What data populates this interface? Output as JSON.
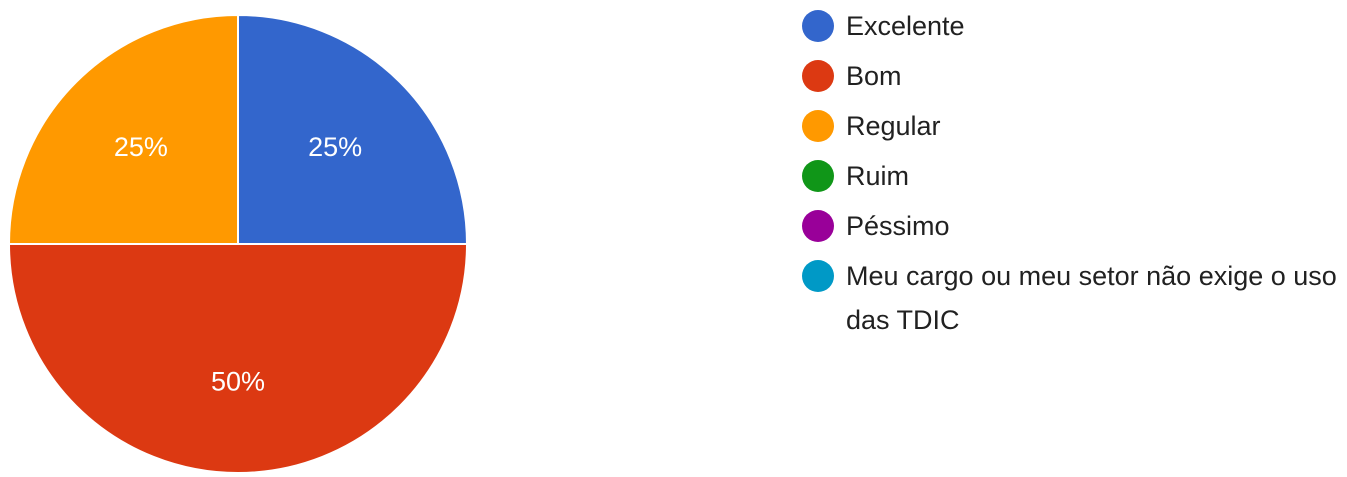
{
  "chart_data": {
    "type": "pie",
    "categories": [
      "Excelente",
      "Bom",
      "Regular",
      "Ruim",
      "Péssimo",
      "Meu cargo ou meu setor não exige o uso das TDIC"
    ],
    "values": [
      25,
      50,
      25,
      0,
      0,
      0
    ],
    "data_labels": [
      "25%",
      "50%",
      "25%",
      "",
      "",
      ""
    ],
    "colors": [
      "#3366cc",
      "#dc3912",
      "#ff9900",
      "#109618",
      "#990099",
      "#0099c6"
    ],
    "legend_position": "right"
  }
}
